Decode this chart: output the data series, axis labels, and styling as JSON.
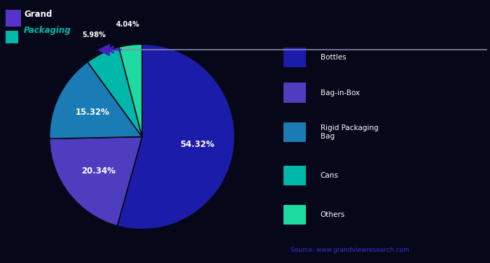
{
  "segments": [
    {
      "label": "Bottles",
      "value": 54.32,
      "color": "#1c1caa",
      "pct_label": "54.32%"
    },
    {
      "label": "Bag-in-Box",
      "value": 20.34,
      "color": "#4e3dbf",
      "pct_label": "20.34%"
    },
    {
      "label": "Rigid Packaging",
      "value": 15.32,
      "color": "#1a7bb5",
      "pct_label": "15.32%"
    },
    {
      "label": "Cans",
      "value": 5.98,
      "color": "#00b8a9",
      "pct_label": "5.98%"
    },
    {
      "label": "Others",
      "value": 4.04,
      "color": "#1ddba0",
      "pct_label": "4.04%"
    }
  ],
  "legend_items": [
    {
      "label": "Bottles",
      "color": "#1c1caa"
    },
    {
      "label": "Bag-in-Box",
      "color": "#4e3dbf"
    },
    {
      "label": "Rigid Packaging\nBag",
      "color": "#1a7bb5"
    },
    {
      "label": "Cans",
      "color": "#00b8a9"
    },
    {
      "label": "Others",
      "color": "#1ddba0"
    }
  ],
  "background_color": "#07071a",
  "source_text": "Source: www.grandviewresearch.com",
  "source_color": "#3333dd",
  "line_color": "#8888aa",
  "arrow_color": "#4422bb",
  "logo_color_top": "#5533cc",
  "logo_color_bottom": "#00b8a9",
  "startangle": 90,
  "label_inner_r": 0.6,
  "label_outer_r": 1.22
}
